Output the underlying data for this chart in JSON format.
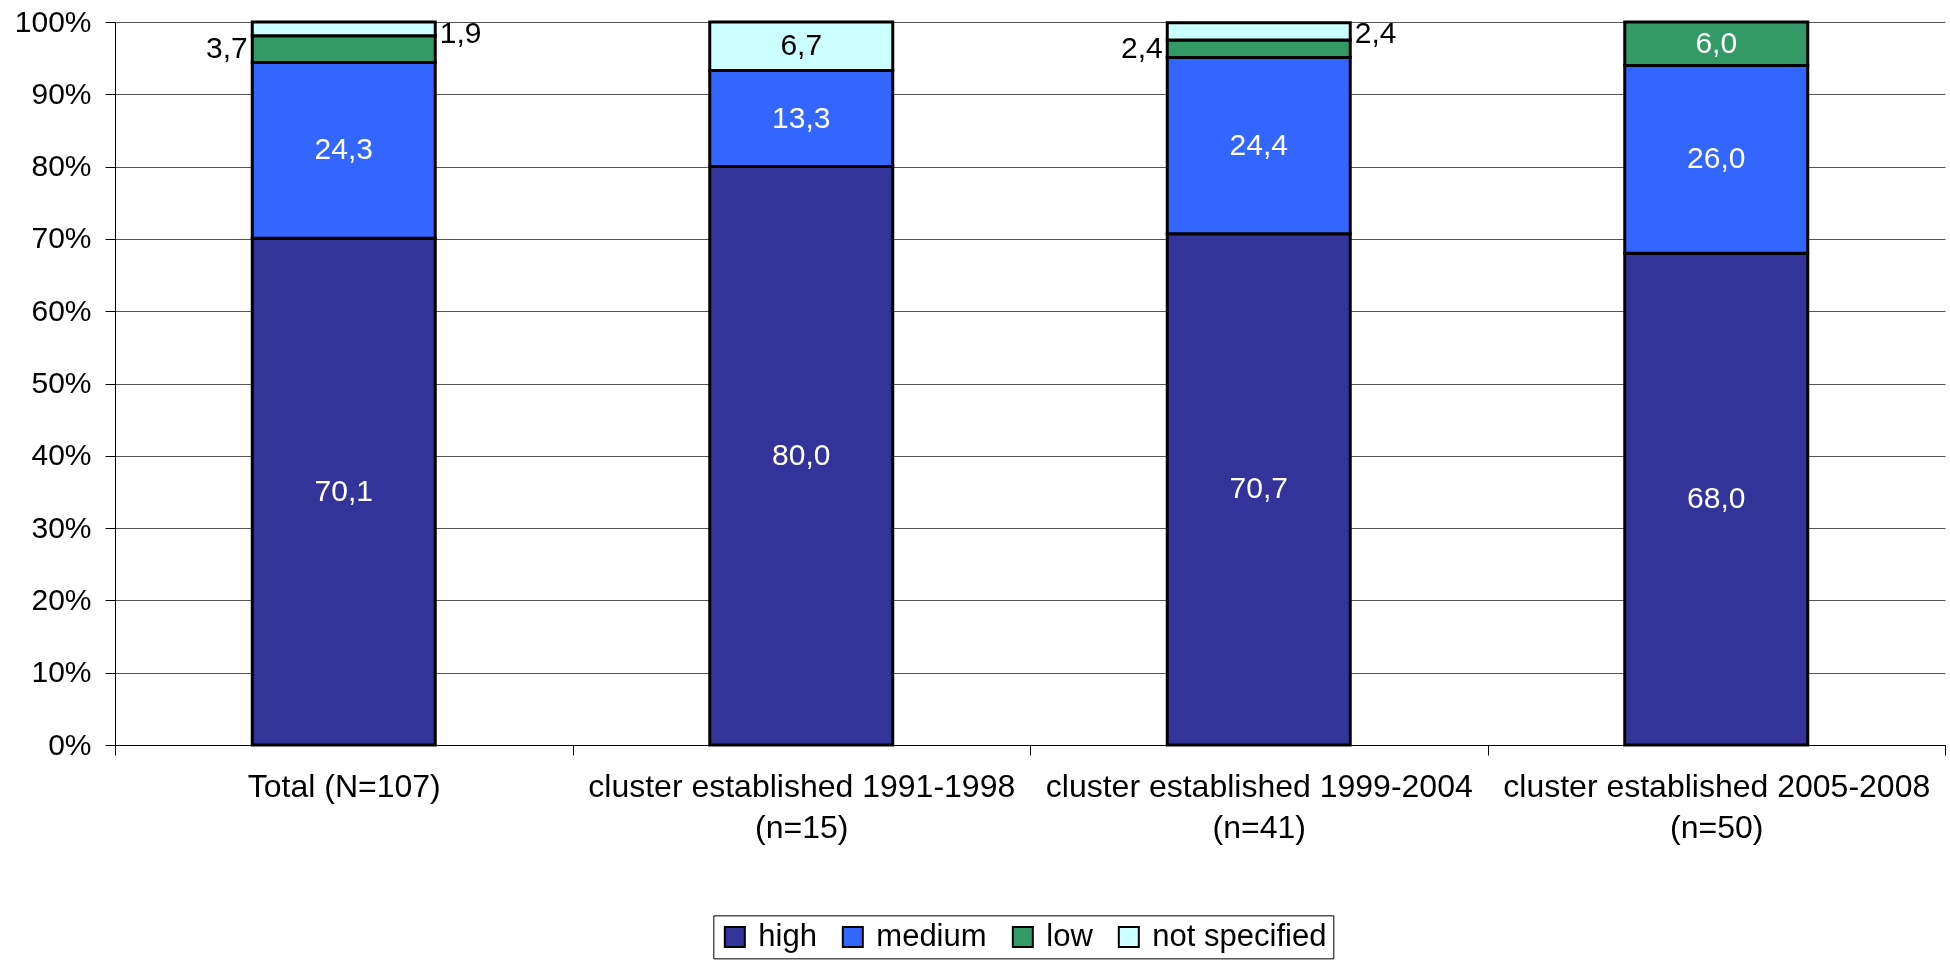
{
  "chart_data": {
    "type": "bar",
    "stacked": true,
    "categories": [
      "Total (N=107)",
      "cluster established 1991-1998 (n=15)",
      "cluster established 1999-2004 (n=41)",
      "cluster established 2005-2008 (n=50)"
    ],
    "series": [
      {
        "name": "high",
        "color": "#333399",
        "values": [
          70.1,
          80.0,
          70.7,
          68.0
        ],
        "value_labels": [
          "70,1",
          "80,0",
          "70,7",
          "68,0"
        ]
      },
      {
        "name": "medium",
        "color": "#3366ff",
        "values": [
          24.3,
          13.3,
          24.4,
          26.0
        ],
        "value_labels": [
          "24,3",
          "13,3",
          "24,4",
          "26,0"
        ]
      },
      {
        "name": "low",
        "color": "#339966",
        "values": [
          3.7,
          null,
          2.4,
          6.0
        ],
        "value_labels": [
          "3,7",
          null,
          "2,4",
          "6,0"
        ]
      },
      {
        "name": "not specified",
        "color": "#ccffff",
        "values": [
          1.9,
          6.7,
          2.4,
          null
        ],
        "value_labels": [
          "1,9",
          "6,7",
          "2,4",
          null
        ]
      }
    ],
    "ylim": [
      0,
      100
    ],
    "yticks": [
      {
        "value": 0,
        "label": "0%"
      },
      {
        "value": 10,
        "label": "10%"
      },
      {
        "value": 20,
        "label": "20%"
      },
      {
        "value": 30,
        "label": "30%"
      },
      {
        "value": 40,
        "label": "40%"
      },
      {
        "value": 50,
        "label": "50%"
      },
      {
        "value": 60,
        "label": "60%"
      },
      {
        "value": 70,
        "label": "70%"
      },
      {
        "value": 80,
        "label": "80%"
      },
      {
        "value": 90,
        "label": "90%"
      },
      {
        "value": 100,
        "label": "100%"
      }
    ],
    "grid": "y",
    "legend": "bottom"
  }
}
